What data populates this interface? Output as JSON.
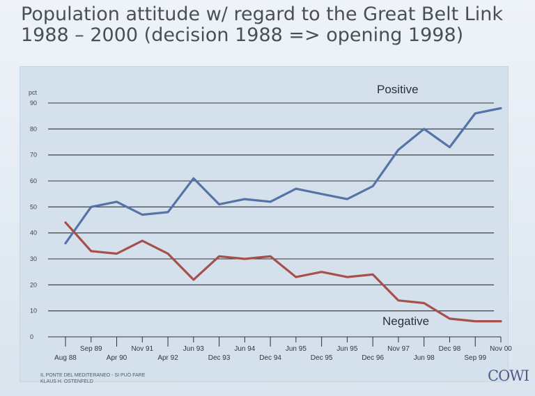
{
  "title": {
    "line1": "Population attitude w/ regard to the Great Belt Link",
    "line2": "1988 – 2000 (decision 1988 => opening 1998)"
  },
  "footer": {
    "line1": "IL PONTE DEL MEDITERANEO - SI PUÒ FARE",
    "line2": "KLAUS H. OSTENFELD"
  },
  "logo": "COWI",
  "colors": {
    "positive": "#5772a7",
    "negative": "#a5504a",
    "gridline": "#2b2f35",
    "panel": "#d4e0ec"
  },
  "chart_data": {
    "type": "line",
    "ylabel": "pct",
    "ylim": [
      0,
      90
    ],
    "yticks": [
      0,
      10,
      20,
      30,
      40,
      50,
      60,
      70,
      80,
      90
    ],
    "grid": true,
    "tick_labels_lower": [
      "Aug 88",
      "Apr 90",
      "Apr 92",
      "Dec 93",
      "Dec 94",
      "Dec 95",
      "Dec 96",
      "Jun 98",
      "Sep 99"
    ],
    "tick_labels_upper": [
      "Sep 89",
      "Nov 91",
      "Jun 93",
      "Jun 94",
      "Jun 95",
      "Jun 95",
      "Nov 97",
      "Dec 98",
      "Nov 00"
    ],
    "x": [
      "Aug 88",
      "Sep 89",
      "Apr 90",
      "Nov 91",
      "Apr 92",
      "Jun 93",
      "Dec 93",
      "Jun 94",
      "Dec 94",
      "Jun 95",
      "Dec 95",
      "Jun 95",
      "Dec 96",
      "Nov 97",
      "Jun 98",
      "Dec 98",
      "Sep 99",
      "Nov 00"
    ],
    "series": [
      {
        "name": "Positive",
        "values": [
          36,
          50,
          52,
          47,
          48,
          61,
          51,
          53,
          52,
          57,
          55,
          53,
          58,
          72,
          80,
          73,
          86,
          88
        ]
      },
      {
        "name": "Negative",
        "values": [
          44,
          33,
          32,
          37,
          32,
          22,
          31,
          30,
          31,
          23,
          25,
          23,
          24,
          14,
          13,
          7,
          6,
          6
        ]
      }
    ]
  }
}
